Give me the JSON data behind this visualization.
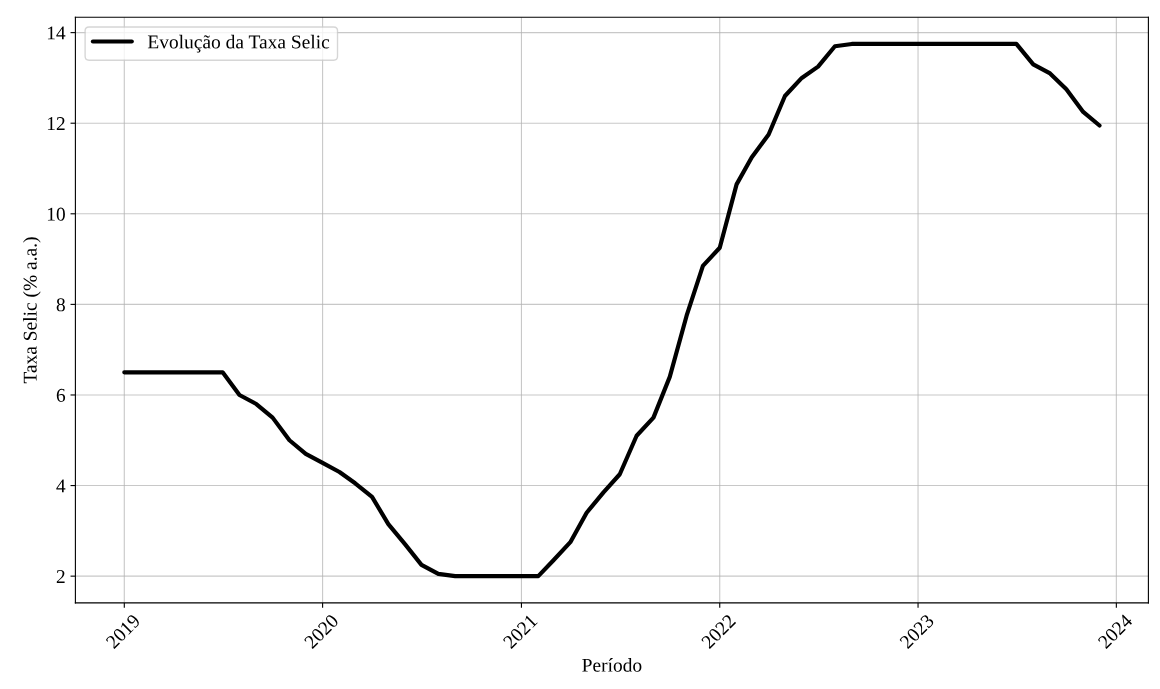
{
  "chart_data": {
    "type": "line",
    "xlabel": "Período",
    "ylabel": "Taxa Selic (% a.a.)",
    "x": [
      "2019-01",
      "2019-02",
      "2019-03",
      "2019-04",
      "2019-05",
      "2019-06",
      "2019-07",
      "2019-08",
      "2019-09",
      "2019-10",
      "2019-11",
      "2019-12",
      "2020-01",
      "2020-02",
      "2020-03",
      "2020-04",
      "2020-05",
      "2020-06",
      "2020-07",
      "2020-08",
      "2020-09",
      "2020-10",
      "2020-11",
      "2020-12",
      "2021-01",
      "2021-02",
      "2021-03",
      "2021-04",
      "2021-05",
      "2021-06",
      "2021-07",
      "2021-08",
      "2021-09",
      "2021-10",
      "2021-11",
      "2021-12",
      "2022-01",
      "2022-02",
      "2022-03",
      "2022-04",
      "2022-05",
      "2022-06",
      "2022-07",
      "2022-08",
      "2022-09",
      "2022-10",
      "2022-11",
      "2022-12",
      "2023-01",
      "2023-02",
      "2023-03",
      "2023-04",
      "2023-05",
      "2023-06",
      "2023-07",
      "2023-08",
      "2023-09",
      "2023-10",
      "2023-11",
      "2023-12"
    ],
    "series": [
      {
        "name": "Evolução da Taxa Selic",
        "color": "#000000",
        "values": [
          6.5,
          6.5,
          6.5,
          6.5,
          6.5,
          6.5,
          6.5,
          6.0,
          5.8,
          5.5,
          5.0,
          4.7,
          4.5,
          4.3,
          4.05,
          3.75,
          3.15,
          2.7,
          2.25,
          2.05,
          2.0,
          2.0,
          2.0,
          2.0,
          2.0,
          2.0,
          2.35,
          2.75,
          3.4,
          3.85,
          4.25,
          5.1,
          5.5,
          6.4,
          7.75,
          8.85,
          9.25,
          10.65,
          11.25,
          11.75,
          12.6,
          13.0,
          13.25,
          13.7,
          13.75,
          13.75,
          13.75,
          13.75,
          13.75,
          13.75,
          13.75,
          13.75,
          13.75,
          13.75,
          13.75,
          13.3,
          13.1,
          12.75,
          12.25,
          11.95
        ]
      }
    ],
    "xlim": [
      "2018-10-03",
      "2024-02-29"
    ],
    "xticks": [
      {
        "value": "2019-01-01",
        "label": "2019"
      },
      {
        "value": "2020-01-01",
        "label": "2020"
      },
      {
        "value": "2021-01-01",
        "label": "2021"
      },
      {
        "value": "2022-01-01",
        "label": "2022"
      },
      {
        "value": "2023-01-01",
        "label": "2023"
      },
      {
        "value": "2024-01-01",
        "label": "2024"
      }
    ],
    "ylim": [
      1.41,
      14.34
    ],
    "yticks": [
      2,
      4,
      6,
      8,
      10,
      12,
      14
    ],
    "grid": true,
    "legend": "top left",
    "line_style": "solid",
    "marker": "none"
  }
}
